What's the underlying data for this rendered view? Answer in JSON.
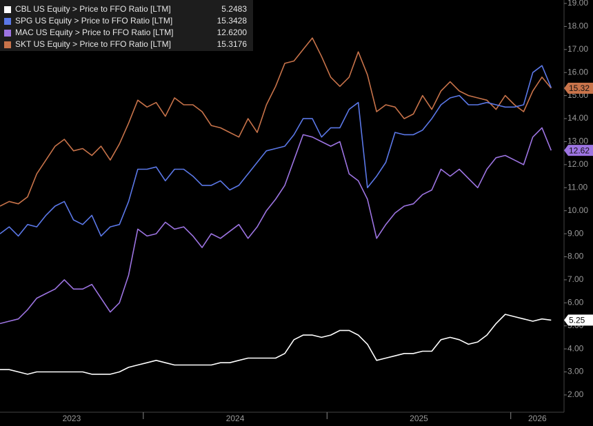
{
  "chart_data": {
    "type": "line",
    "x": [
      2023.22,
      2023.27,
      2023.32,
      2023.37,
      2023.42,
      2023.47,
      2023.52,
      2023.57,
      2023.62,
      2023.67,
      2023.72,
      2023.77,
      2023.82,
      2023.87,
      2023.92,
      2023.97,
      2024.02,
      2024.07,
      2024.12,
      2024.17,
      2024.22,
      2024.27,
      2024.32,
      2024.37,
      2024.42,
      2024.47,
      2024.52,
      2024.57,
      2024.62,
      2024.67,
      2024.72,
      2024.77,
      2024.82,
      2024.87,
      2024.92,
      2024.97,
      2025.02,
      2025.07,
      2025.12,
      2025.17,
      2025.22,
      2025.27,
      2025.32,
      2025.37,
      2025.42,
      2025.47,
      2025.52,
      2025.57,
      2025.62,
      2025.67,
      2025.72,
      2025.77,
      2025.82,
      2025.87,
      2025.92,
      2025.97,
      2026.02,
      2026.07,
      2026.12,
      2026.17,
      2026.22
    ],
    "series": [
      {
        "name": "CBL US Equity > Price to FFO Ratio [LTM]",
        "last_value_label": "5.2483",
        "end_label": "5.25",
        "color": "#ffffff",
        "values": [
          3.1,
          3.1,
          3.0,
          2.9,
          3.0,
          3.0,
          3.0,
          3.0,
          3.0,
          3.0,
          2.9,
          2.9,
          2.9,
          3.0,
          3.2,
          3.3,
          3.4,
          3.5,
          3.4,
          3.3,
          3.3,
          3.3,
          3.3,
          3.3,
          3.4,
          3.4,
          3.5,
          3.6,
          3.6,
          3.6,
          3.6,
          3.8,
          4.4,
          4.6,
          4.6,
          4.5,
          4.6,
          4.8,
          4.8,
          4.6,
          4.2,
          3.5,
          3.6,
          3.7,
          3.8,
          3.8,
          3.9,
          3.9,
          4.4,
          4.5,
          4.4,
          4.2,
          4.3,
          4.6,
          5.1,
          5.5,
          5.4,
          5.3,
          5.2,
          5.3,
          5.2483
        ]
      },
      {
        "name": "SPG US Equity > Price to FFO Ratio [LTM]",
        "last_value_label": "15.3428",
        "color": "#5b78e8",
        "values": [
          9.0,
          9.3,
          8.9,
          9.4,
          9.3,
          9.8,
          10.2,
          10.4,
          9.6,
          9.4,
          9.8,
          8.9,
          9.3,
          9.4,
          10.4,
          11.8,
          11.8,
          11.9,
          11.3,
          11.8,
          11.8,
          11.5,
          11.1,
          11.1,
          11.3,
          10.9,
          11.1,
          11.6,
          12.1,
          12.6,
          12.7,
          12.8,
          13.3,
          14.0,
          14.0,
          13.2,
          13.6,
          13.6,
          14.4,
          14.7,
          11.0,
          11.5,
          12.1,
          13.4,
          13.3,
          13.3,
          13.5,
          14.0,
          14.6,
          14.9,
          15.0,
          14.6,
          14.6,
          14.7,
          14.6,
          14.5,
          14.5,
          14.6,
          16.0,
          16.3,
          15.3428
        ]
      },
      {
        "name": "MAC US Equity > Price to FFO Ratio [LTM]",
        "last_value_label": "12.6200",
        "end_label": "12.62",
        "color": "#9d74e2",
        "values": [
          5.1,
          5.2,
          5.3,
          5.7,
          6.2,
          6.4,
          6.6,
          7.0,
          6.6,
          6.6,
          6.8,
          6.2,
          5.6,
          6.0,
          7.2,
          9.2,
          8.9,
          9.0,
          9.5,
          9.2,
          9.3,
          8.9,
          8.4,
          9.0,
          8.8,
          9.1,
          9.4,
          8.8,
          9.3,
          10.0,
          10.5,
          11.1,
          12.2,
          13.3,
          13.2,
          13.0,
          12.8,
          13.0,
          11.6,
          11.3,
          10.5,
          8.8,
          9.4,
          9.9,
          10.2,
          10.3,
          10.7,
          10.9,
          11.8,
          11.5,
          11.8,
          11.4,
          11.0,
          11.8,
          12.3,
          12.4,
          12.2,
          12.0,
          13.2,
          13.6,
          12.62
        ]
      },
      {
        "name": "SKT US Equity > Price to FFO Ratio [LTM]",
        "last_value_label": "15.3176",
        "end_label": "15.32",
        "color": "#c8734a",
        "values": [
          10.2,
          10.4,
          10.3,
          10.6,
          11.6,
          12.2,
          12.8,
          13.1,
          12.6,
          12.7,
          12.4,
          12.8,
          12.2,
          12.9,
          13.8,
          14.8,
          14.5,
          14.7,
          14.1,
          14.9,
          14.6,
          14.6,
          14.3,
          13.7,
          13.6,
          13.4,
          13.2,
          14.0,
          13.4,
          14.6,
          15.4,
          16.4,
          16.5,
          17.0,
          17.5,
          16.7,
          15.8,
          15.4,
          15.8,
          16.9,
          15.9,
          14.3,
          14.6,
          14.5,
          14.0,
          14.2,
          15.0,
          14.4,
          15.2,
          15.6,
          15.2,
          15.0,
          14.9,
          14.8,
          14.4,
          15.0,
          14.6,
          14.3,
          15.2,
          15.8,
          15.3176
        ]
      }
    ],
    "xlim": [
      2023.22,
      2026.29
    ],
    "xticks": [
      {
        "value": 2023,
        "label": "2023"
      },
      {
        "value": 2024,
        "label": "2024"
      },
      {
        "value": 2025,
        "label": "2025"
      },
      {
        "value": 2026,
        "label": "2026"
      }
    ],
    "ylim": [
      1.25,
      19.15
    ],
    "yticks": [
      {
        "value": 2,
        "label": "2.00"
      },
      {
        "value": 3,
        "label": "3.00"
      },
      {
        "value": 4,
        "label": "4.00"
      },
      {
        "value": 5,
        "label": "5.00"
      },
      {
        "value": 6,
        "label": "6.00"
      },
      {
        "value": 7,
        "label": "7.00"
      },
      {
        "value": 8,
        "label": "8.00"
      },
      {
        "value": 9,
        "label": "9.00"
      },
      {
        "value": 10,
        "label": "10.00"
      },
      {
        "value": 11,
        "label": "11.00"
      },
      {
        "value": 12,
        "label": "12.00"
      },
      {
        "value": 13,
        "label": "13.00"
      },
      {
        "value": 14,
        "label": "14.00"
      },
      {
        "value": 15,
        "label": "15.00"
      },
      {
        "value": 16,
        "label": "16.00"
      },
      {
        "value": 17,
        "label": "17.00"
      },
      {
        "value": 18,
        "label": "18.00"
      },
      {
        "value": 19,
        "label": "19.00"
      }
    ],
    "legend": "upper left",
    "background": "#000000"
  }
}
